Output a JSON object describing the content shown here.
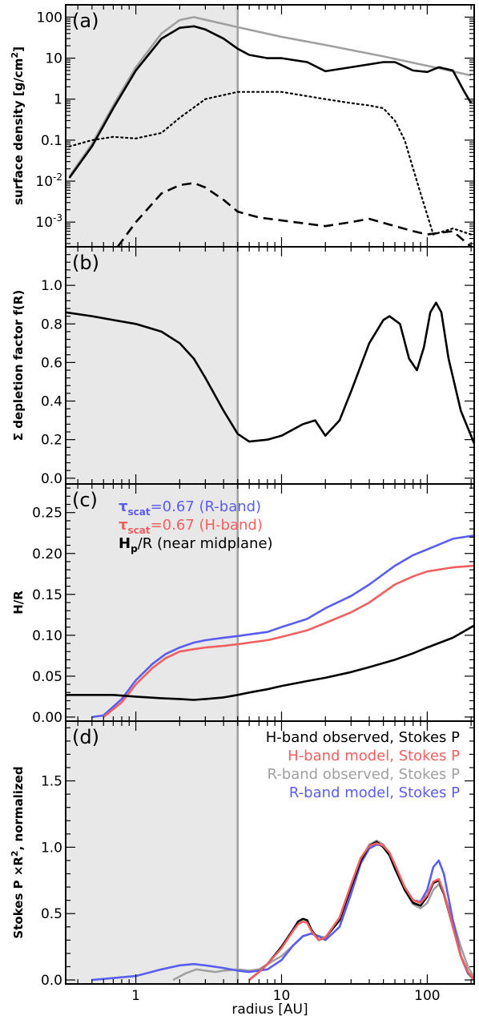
{
  "chart_data": [
    {
      "panel_label": "(a)",
      "type": "line",
      "ylabel": "surface density [g/cm²]",
      "ylabel_parts": [
        "surface density [g/cm",
        "2",
        "]"
      ],
      "xscale": "log",
      "yscale": "log",
      "xlim": [
        0.33,
        210
      ],
      "ylim": [
        0.00025,
        200
      ],
      "yticks": [
        0.001,
        0.01,
        0.1,
        1,
        10,
        100
      ],
      "ytick_labels": [
        {
          "base": "10",
          "exp": "-3"
        },
        {
          "base": "10",
          "exp": "-2"
        },
        {
          "base": "0.1",
          "exp": ""
        },
        {
          "base": "1",
          "exp": ""
        },
        {
          "base": "10",
          "exp": ""
        },
        {
          "base": "100",
          "exp": ""
        }
      ],
      "shaded_region": [
        0.33,
        5
      ],
      "vline": 5,
      "series": [
        {
          "style": "grey-solid",
          "color": "#a0a0a0",
          "x": [
            0.35,
            0.5,
            0.7,
            1.0,
            1.5,
            2.0,
            2.5,
            5,
            10,
            20,
            50,
            100,
            200
          ],
          "y": [
            0.013,
            0.08,
            0.7,
            6,
            40,
            85,
            100,
            57,
            33,
            21,
            11,
            6.5,
            3.8
          ]
        },
        {
          "style": "black-solid",
          "color": "#000000",
          "x": [
            0.35,
            0.5,
            0.7,
            1.0,
            1.5,
            2.0,
            2.5,
            3,
            4,
            5,
            6,
            8,
            10,
            15,
            20,
            30,
            50,
            60,
            80,
            100,
            120,
            150,
            180,
            200
          ],
          "y": [
            0.012,
            0.07,
            0.6,
            5,
            30,
            55,
            60,
            50,
            30,
            17,
            12,
            10,
            10,
            8,
            4.8,
            6,
            8,
            8,
            5,
            4.6,
            6,
            5,
            1.5,
            0.8
          ]
        },
        {
          "style": "dotted",
          "color": "#000000",
          "x": [
            0.35,
            0.5,
            0.7,
            1.0,
            1.5,
            2,
            3,
            5,
            10,
            20,
            30,
            40,
            50,
            60,
            70,
            80,
            90,
            100,
            110,
            150,
            200
          ],
          "y": [
            0.07,
            0.1,
            0.12,
            0.11,
            0.15,
            0.35,
            1.0,
            1.5,
            1.5,
            1.0,
            0.8,
            0.7,
            0.6,
            0.3,
            0.1,
            0.02,
            0.005,
            0.0015,
            0.0005,
            0.0007,
            0.0005
          ]
        },
        {
          "style": "dashed",
          "color": "#000000",
          "x": [
            0.75,
            1.0,
            1.5,
            2.0,
            2.5,
            3,
            4,
            5,
            7,
            10,
            20,
            30,
            40,
            60,
            80,
            100,
            150,
            200
          ],
          "y": [
            0.00025,
            0.001,
            0.005,
            0.008,
            0.009,
            0.007,
            0.0035,
            0.0018,
            0.0013,
            0.0011,
            0.0008,
            0.001,
            0.0012,
            0.0008,
            0.0006,
            0.0005,
            0.0006,
            0.00025
          ]
        }
      ]
    },
    {
      "panel_label": "(b)",
      "type": "line",
      "ylabel": "Σ depletion factor f(R)",
      "xscale": "log",
      "yscale": "linear",
      "xlim": [
        0.33,
        210
      ],
      "ylim": [
        -0.03,
        1.2
      ],
      "yticks": [
        0.0,
        0.2,
        0.4,
        0.6,
        0.8,
        1.0
      ],
      "ytick_labels": [
        "0.0",
        "0.2",
        "0.4",
        "0.6",
        "0.8",
        "1.0"
      ],
      "shaded_region": [
        0.33,
        5
      ],
      "vline": 5,
      "series": [
        {
          "style": "black-solid",
          "color": "#000000",
          "x": [
            0.33,
            0.5,
            0.7,
            1.0,
            1.5,
            2.0,
            2.5,
            3,
            4,
            5,
            6,
            8,
            10,
            14,
            17,
            20,
            25,
            30,
            40,
            50,
            55,
            65,
            75,
            85,
            95,
            105,
            115,
            125,
            140,
            170,
            210
          ],
          "y": [
            0.86,
            0.84,
            0.82,
            0.8,
            0.76,
            0.7,
            0.62,
            0.52,
            0.35,
            0.23,
            0.19,
            0.2,
            0.22,
            0.28,
            0.3,
            0.22,
            0.3,
            0.45,
            0.7,
            0.82,
            0.84,
            0.8,
            0.62,
            0.56,
            0.68,
            0.86,
            0.91,
            0.86,
            0.62,
            0.35,
            0.18
          ]
        }
      ]
    },
    {
      "panel_label": "(c)",
      "type": "line",
      "ylabel": "H/R",
      "xscale": "log",
      "yscale": "linear",
      "xlim": [
        0.33,
        210
      ],
      "ylim": [
        -0.005,
        0.285
      ],
      "yticks": [
        0.0,
        0.05,
        0.1,
        0.15,
        0.2,
        0.25
      ],
      "ytick_labels": [
        "0.00",
        "0.05",
        "0.10",
        "0.15",
        "0.20",
        "0.25"
      ],
      "shaded_region": [
        0.33,
        5
      ],
      "vline": 5,
      "legend": [
        {
          "sym": "τ",
          "sub": "scat",
          "text": "=0.67 (R-band)",
          "color": "#5a5ef0"
        },
        {
          "sym": "τ",
          "sub": "scat",
          "text": "=0.67 (H-band)",
          "color": "#f06060"
        },
        {
          "sym": "H",
          "sub": "p",
          "text": "/R (near midplane)",
          "color": "#000000"
        }
      ],
      "series": [
        {
          "name": "τscat=0.67 (R-band)",
          "color": "#5a5ef0",
          "x": [
            0.5,
            0.6,
            0.8,
            1.0,
            1.3,
            1.6,
            2.0,
            2.5,
            3,
            4,
            5,
            6,
            8,
            10,
            15,
            20,
            30,
            40,
            60,
            80,
            100,
            150,
            210
          ],
          "y": [
            0.0,
            0.002,
            0.022,
            0.045,
            0.065,
            0.077,
            0.085,
            0.091,
            0.094,
            0.097,
            0.099,
            0.101,
            0.104,
            0.11,
            0.12,
            0.133,
            0.148,
            0.162,
            0.185,
            0.198,
            0.205,
            0.218,
            0.222
          ]
        },
        {
          "name": "τscat=0.67 (H-band)",
          "color": "#f06060",
          "x": [
            0.6,
            0.8,
            1.0,
            1.3,
            1.6,
            2.0,
            2.5,
            3,
            4,
            5,
            6,
            8,
            10,
            15,
            20,
            30,
            40,
            60,
            80,
            100,
            150,
            210
          ],
          "y": [
            0.0,
            0.018,
            0.04,
            0.06,
            0.072,
            0.08,
            0.083,
            0.085,
            0.087,
            0.089,
            0.091,
            0.094,
            0.098,
            0.106,
            0.115,
            0.128,
            0.14,
            0.162,
            0.172,
            0.178,
            0.183,
            0.185
          ]
        },
        {
          "name": "Hp/R (near midplane)",
          "color": "#000000",
          "x": [
            0.33,
            0.5,
            0.7,
            1.0,
            1.5,
            2.0,
            2.5,
            3,
            4,
            5,
            6,
            8,
            10,
            15,
            20,
            30,
            40,
            60,
            80,
            100,
            150,
            210
          ],
          "y": [
            0.027,
            0.027,
            0.027,
            0.025,
            0.023,
            0.022,
            0.021,
            0.022,
            0.024,
            0.027,
            0.03,
            0.034,
            0.038,
            0.044,
            0.048,
            0.055,
            0.061,
            0.07,
            0.078,
            0.085,
            0.097,
            0.112
          ]
        }
      ]
    },
    {
      "panel_label": "(d)",
      "type": "line",
      "ylabel": "Stokes P ×R², normalized",
      "ylabel_parts": [
        "Stokes P ×R",
        "2",
        ", normalized"
      ],
      "xlabel": "radius [AU]",
      "xscale": "log",
      "yscale": "linear",
      "xlim": [
        0.33,
        210
      ],
      "ylim": [
        -0.03,
        1.95
      ],
      "xticks": [
        1,
        10,
        100
      ],
      "xtick_labels": [
        "1",
        "10",
        "100"
      ],
      "yticks": [
        0.0,
        0.5,
        1.0,
        1.5
      ],
      "ytick_labels": [
        "0.0",
        "0.5",
        "1.0",
        "1.5"
      ],
      "shaded_region": [
        0.33,
        5
      ],
      "vline": 5,
      "legend": [
        {
          "text": "H-band observed, Stokes P",
          "color": "#000000"
        },
        {
          "text": "H-band model, Stokes P",
          "color": "#f06060"
        },
        {
          "text": "R-band observed, Stokes P",
          "color": "#a0a0a0"
        },
        {
          "text": "R-band model, Stokes P",
          "color": "#5a5ef0"
        }
      ],
      "series": [
        {
          "name": "R-band observed, Stokes P",
          "color": "#a0a0a0",
          "x": [
            1.8,
            2.2,
            2.6,
            3,
            3.5,
            4,
            5,
            6,
            7,
            8,
            10,
            12,
            14,
            16,
            18,
            20,
            25,
            30,
            35,
            40,
            45,
            50,
            55,
            60,
            70,
            80,
            90,
            100,
            110,
            120,
            130,
            150,
            170,
            190,
            210
          ],
          "y": [
            0.0,
            0.05,
            0.08,
            0.07,
            0.06,
            0.07,
            0.08,
            0.07,
            0.08,
            0.12,
            0.18,
            0.26,
            0.33,
            0.35,
            0.33,
            0.32,
            0.45,
            0.7,
            0.9,
            1.02,
            1.05,
            1.02,
            0.95,
            0.85,
            0.68,
            0.57,
            0.54,
            0.58,
            0.68,
            0.72,
            0.65,
            0.45,
            0.25,
            0.1,
            0.02
          ]
        },
        {
          "name": "R-band model, Stokes P",
          "color": "#5a5ef0",
          "x": [
            0.5,
            1.0,
            1.5,
            2.0,
            2.5,
            3,
            4,
            5,
            6,
            8,
            10,
            12,
            14,
            16,
            18,
            20,
            25,
            30,
            35,
            40,
            45,
            50,
            55,
            60,
            70,
            80,
            90,
            100,
            110,
            120,
            130,
            150,
            170,
            190,
            210
          ],
          "y": [
            0.0,
            0.03,
            0.08,
            0.11,
            0.12,
            0.11,
            0.09,
            0.07,
            0.06,
            0.08,
            0.15,
            0.26,
            0.33,
            0.35,
            0.33,
            0.3,
            0.4,
            0.65,
            0.88,
            0.99,
            1.02,
            1.01,
            0.95,
            0.85,
            0.7,
            0.6,
            0.59,
            0.68,
            0.85,
            0.9,
            0.8,
            0.45,
            0.18,
            0.05,
            0.0
          ]
        },
        {
          "name": "H-band observed, Stokes P",
          "color": "#000000",
          "x": [
            6,
            7,
            8,
            10,
            12,
            13,
            14,
            15,
            16,
            18,
            20,
            25,
            30,
            35,
            40,
            45,
            50,
            55,
            60,
            70,
            80,
            90,
            100,
            110,
            120,
            130,
            150,
            170,
            190,
            210
          ],
          "y": [
            0.0,
            0.06,
            0.12,
            0.25,
            0.38,
            0.44,
            0.46,
            0.45,
            0.38,
            0.3,
            0.32,
            0.45,
            0.7,
            0.9,
            1.01,
            1.04,
            1.0,
            0.94,
            0.84,
            0.68,
            0.58,
            0.56,
            0.63,
            0.73,
            0.75,
            0.65,
            0.4,
            0.18,
            0.06,
            0.0
          ]
        },
        {
          "name": "H-band model, Stokes P",
          "color": "#f06060",
          "x": [
            6,
            7,
            8,
            10,
            12,
            13,
            14,
            15,
            16,
            18,
            20,
            25,
            30,
            35,
            40,
            45,
            50,
            55,
            60,
            70,
            80,
            90,
            100,
            110,
            120,
            130,
            150,
            170,
            190,
            210
          ],
          "y": [
            0.0,
            0.06,
            0.12,
            0.24,
            0.37,
            0.42,
            0.44,
            0.43,
            0.37,
            0.3,
            0.32,
            0.47,
            0.72,
            0.92,
            1.01,
            1.03,
            1.01,
            0.96,
            0.87,
            0.7,
            0.6,
            0.58,
            0.64,
            0.74,
            0.76,
            0.66,
            0.4,
            0.18,
            0.06,
            0.0
          ]
        }
      ]
    }
  ]
}
